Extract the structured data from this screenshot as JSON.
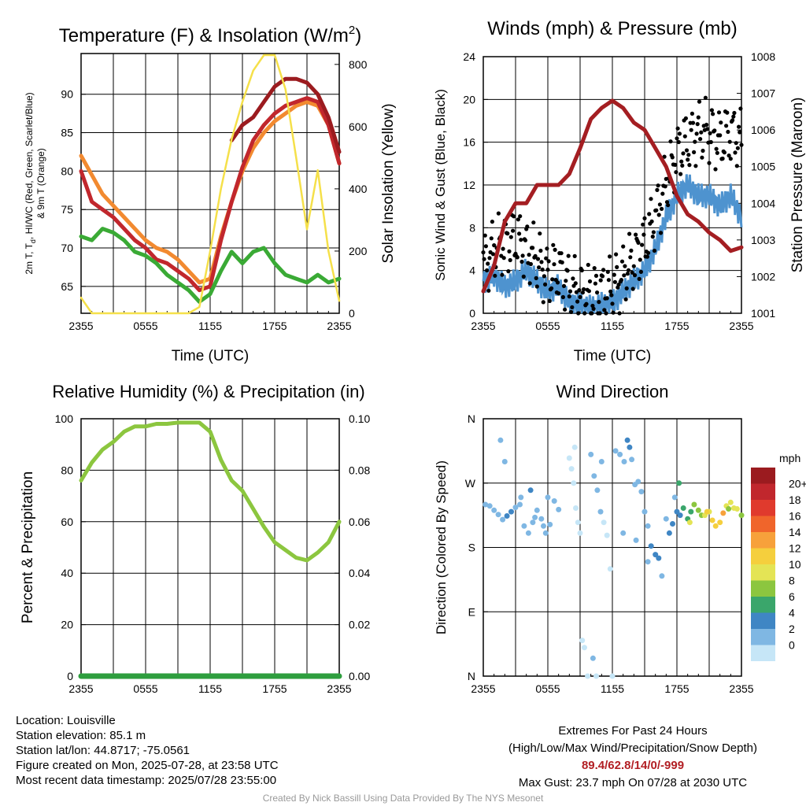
{
  "colors": {
    "red": "#c1272d",
    "dark_red": "#9b1b1f",
    "orange": "#f28a30",
    "green": "#3aaa35",
    "yellow": "#f5e04a",
    "blue": "#4e93cf",
    "black": "#000000",
    "maroon": "#a41e22",
    "rh": "#8cc63f",
    "precip": "#2e9e3e"
  },
  "chart_data": [
    {
      "id": "temp",
      "type": "line",
      "title": "Temperature (F) & Insolation (W/m",
      "title_sup": "2",
      "title_end": ")",
      "xlabel": "Time (UTC)",
      "ylabel_line1": "2m T, T",
      "ylabel_sub": "d",
      "ylabel_line1_end": ", HI/WC (Red, Green, Scarlet/Blue)",
      "ylabel_line2": "& 9m T (Orange)",
      "ylabel_right": "Solar Insolation (Yellow)",
      "x_ticks": [
        "2355",
        "0555",
        "1155",
        "1755",
        "2355"
      ],
      "ylim": [
        61.5,
        95.3
      ],
      "y_ticks": [
        "65",
        "70",
        "75",
        "80",
        "85",
        "90"
      ],
      "ylim_right": [
        0,
        835
      ],
      "y_ticks_right": [
        "0",
        "200",
        "400",
        "600",
        "800"
      ],
      "series": [
        {
          "color": "orange",
          "x": [
            0,
            1,
            2,
            3,
            4,
            5,
            6,
            7,
            8,
            9,
            10,
            11,
            12,
            13,
            14,
            15,
            16,
            17,
            18,
            19,
            20,
            21,
            22,
            23,
            24
          ],
          "values": [
            82,
            79.5,
            77,
            75.5,
            74,
            72.5,
            71,
            70,
            69.5,
            68.5,
            67,
            65.5,
            66,
            71.5,
            76,
            80,
            83,
            85,
            86.5,
            87.5,
            88.5,
            89,
            88.5,
            86,
            81
          ]
        },
        {
          "color": "red",
          "x": [
            0,
            1,
            2,
            3,
            4,
            5,
            6,
            7,
            8,
            9,
            10,
            11,
            12,
            13,
            14,
            15,
            16,
            17,
            18,
            19,
            20,
            21,
            22,
            23,
            24
          ],
          "values": [
            80,
            76,
            75,
            74,
            72.5,
            71,
            70,
            68.5,
            68,
            67,
            66,
            64.5,
            65,
            71,
            76,
            80.5,
            84,
            86,
            87.5,
            88.5,
            89,
            89.5,
            89,
            86,
            81
          ]
        },
        {
          "color": "dark_red",
          "x": [
            0,
            1,
            2,
            3,
            4,
            5,
            6,
            7,
            8,
            9,
            10,
            11,
            12,
            13,
            14,
            15,
            16,
            17,
            18,
            19,
            20,
            21,
            22,
            23,
            24
          ],
          "values": [
            null,
            null,
            null,
            null,
            null,
            null,
            null,
            null,
            null,
            null,
            null,
            null,
            null,
            null,
            84,
            86,
            87,
            89,
            91,
            92,
            92,
            91.5,
            90,
            87,
            82.5
          ]
        },
        {
          "color": "green",
          "x": [
            0,
            1,
            2,
            3,
            4,
            5,
            6,
            7,
            8,
            9,
            10,
            11,
            12,
            13,
            14,
            15,
            16,
            17,
            18,
            19,
            20,
            21,
            22,
            23,
            24
          ],
          "values": [
            71.5,
            71,
            72.5,
            72,
            71,
            69.5,
            69,
            68,
            66.5,
            65.5,
            64.5,
            63,
            64,
            67,
            69.5,
            68,
            69.5,
            70,
            68,
            66.5,
            66,
            65.5,
            66.5,
            65.5,
            66
          ]
        },
        {
          "color": "yellow",
          "axis": "right",
          "x": [
            0,
            1,
            2,
            3,
            4,
            5,
            6,
            7,
            8,
            9,
            10,
            11,
            12,
            13,
            14,
            15,
            16,
            17,
            18,
            19,
            20,
            21,
            22,
            23,
            24
          ],
          "values": [
            50,
            0,
            0,
            0,
            0,
            0,
            0,
            0,
            0,
            0,
            0,
            20,
            200,
            400,
            560,
            680,
            780,
            830,
            830,
            720,
            500,
            270,
            460,
            200,
            40
          ]
        }
      ]
    },
    {
      "id": "wind",
      "type": "line",
      "title": "Winds (mph) & Pressure (mb)",
      "xlabel": "Time (UTC)",
      "ylabel": "Sonic Wind & Gust (Blue, Black)",
      "ylabel_right": "Station Pressure (Maroon)",
      "x_ticks": [
        "2355",
        "0555",
        "1155",
        "1755",
        "2355"
      ],
      "ylim": [
        0,
        24
      ],
      "y_ticks": [
        "0",
        "4",
        "8",
        "12",
        "16",
        "20",
        "24"
      ],
      "ylim_right": [
        1001,
        1008
      ],
      "y_ticks_right": [
        "1001",
        "1002",
        "1003",
        "1004",
        "1005",
        "1006",
        "1007",
        "1008"
      ],
      "series": [
        {
          "color": "blue",
          "name": "Sonic Wind",
          "x": [
            0,
            1,
            2,
            3,
            4,
            5,
            6,
            7,
            8,
            9,
            10,
            11,
            12,
            13,
            14,
            15,
            16,
            17,
            18,
            19,
            20,
            21,
            22,
            23,
            24
          ],
          "values": [
            3,
            3.5,
            2.5,
            3,
            4,
            3,
            2,
            2.5,
            1,
            0.8,
            0.5,
            0.8,
            1,
            2,
            3,
            4,
            6,
            9,
            11,
            12,
            11,
            11,
            10,
            11,
            9
          ]
        },
        {
          "color": "black",
          "name": "Gust",
          "x": [
            0,
            1,
            2,
            3,
            4,
            5,
            6,
            7,
            8,
            9,
            10,
            11,
            12,
            13,
            14,
            15,
            16,
            17,
            18,
            19,
            20,
            21,
            22,
            23,
            24
          ],
          "values": [
            4.5,
            6,
            6.5,
            7,
            6,
            5,
            3.5,
            4,
            2.5,
            2,
            1.5,
            2,
            2.5,
            3.5,
            5,
            6.5,
            9,
            12,
            15,
            16,
            17,
            17,
            16,
            17,
            16
          ]
        },
        {
          "color": "maroon",
          "name": "Station Pressure",
          "axis": "right",
          "x": [
            0,
            1,
            2,
            3,
            4,
            5,
            6,
            7,
            8,
            9,
            10,
            11,
            12,
            13,
            14,
            15,
            16,
            17,
            18,
            19,
            20,
            21,
            22,
            23,
            24
          ],
          "values": [
            1001.6,
            1002.3,
            1003.5,
            1004,
            1004,
            1004.5,
            1004.5,
            1004.5,
            1004.8,
            1005.5,
            1006.3,
            1006.6,
            1006.8,
            1006.6,
            1006.2,
            1006,
            1005.5,
            1005,
            1004.2,
            1003.7,
            1003.5,
            1003.2,
            1003,
            1002.7,
            1002.8
          ]
        }
      ]
    },
    {
      "id": "rh",
      "type": "line",
      "title": "Relative Humidity (%) & Precipitation (in)",
      "ylabel": "Percent & Precipitation",
      "x_ticks": [
        "2355",
        "0555",
        "1155",
        "1755",
        "2355"
      ],
      "ylim": [
        0,
        100
      ],
      "y_ticks": [
        "0",
        "20",
        "40",
        "60",
        "80",
        "100"
      ],
      "ylim_right": [
        0,
        0.1
      ],
      "y_ticks_right": [
        "0.00",
        "0.02",
        "0.04",
        "0.06",
        "0.08",
        "0.10"
      ],
      "series": [
        {
          "color": "rh",
          "x": [
            0,
            1,
            2,
            3,
            4,
            5,
            6,
            7,
            8,
            9,
            10,
            11,
            12,
            13,
            14,
            15,
            16,
            17,
            18,
            19,
            20,
            21,
            22,
            23,
            24
          ],
          "values": [
            76,
            83,
            88,
            91,
            95,
            97,
            97,
            98,
            98,
            98.5,
            98.5,
            98.5,
            95,
            84,
            76,
            72,
            65,
            58,
            52,
            49,
            46,
            45,
            48,
            52,
            60
          ]
        },
        {
          "color": "precip",
          "axis": "right",
          "x": [
            0,
            24
          ],
          "values": [
            0,
            0
          ]
        }
      ]
    },
    {
      "id": "dir",
      "type": "scatter",
      "title": "Wind Direction",
      "ylabel": "Direction (Colored By Speed)",
      "x_ticks": [
        "2355",
        "0555",
        "1155",
        "1755",
        "2355"
      ],
      "ylim": [
        0,
        360
      ],
      "y_ticks": [
        "N",
        "E",
        "S",
        "W",
        "N"
      ],
      "colorbar_title": "mph",
      "colorbar_labels": [
        "20+",
        "18",
        "16",
        "14",
        "12",
        "10",
        "8",
        "6",
        "4",
        "2",
        "0"
      ],
      "colorbar_colors": [
        "#9b1b1f",
        "#c1272d",
        "#e03a2d",
        "#f0652b",
        "#f7a13b",
        "#f5cf3d",
        "#e4e455",
        "#8cc63f",
        "#3aa66b",
        "#3f86c4",
        "#7fb7e3",
        "#c6e6f7"
      ],
      "points": [
        [
          0.2,
          240,
          2
        ],
        [
          0.6,
          238,
          3
        ],
        [
          1.0,
          232,
          3
        ],
        [
          1.4,
          226,
          3
        ],
        [
          1.8,
          219,
          3
        ],
        [
          2.2,
          224,
          4
        ],
        [
          2.6,
          230,
          4
        ],
        [
          3.0,
          236,
          3
        ],
        [
          3.4,
          240,
          3
        ],
        [
          3.8,
          210,
          3
        ],
        [
          4.2,
          200,
          3
        ],
        [
          4.6,
          215,
          2
        ],
        [
          5.0,
          232,
          3
        ],
        [
          5.4,
          220,
          2
        ],
        [
          5.8,
          200,
          3
        ],
        [
          6.2,
          212,
          3
        ],
        [
          6.6,
          245,
          3
        ],
        [
          7.0,
          233,
          3
        ],
        [
          1.6,
          330,
          2
        ],
        [
          2.0,
          300,
          2
        ],
        [
          3.5,
          250,
          3
        ],
        [
          4.4,
          260,
          4
        ],
        [
          4.8,
          222,
          3
        ],
        [
          5.6,
          210,
          2
        ],
        [
          6.0,
          250,
          2
        ],
        [
          8.0,
          305,
          1
        ],
        [
          8.2,
          290,
          1
        ],
        [
          8.4,
          270,
          1
        ],
        [
          8.6,
          235,
          1
        ],
        [
          8.8,
          215,
          1
        ],
        [
          9.0,
          200,
          1
        ],
        [
          8.5,
          320,
          1
        ],
        [
          9.2,
          50,
          1
        ],
        [
          9.4,
          40,
          1
        ],
        [
          9.7,
          0,
          1
        ],
        [
          10.0,
          310,
          2
        ],
        [
          10.3,
          280,
          2
        ],
        [
          10.6,
          260,
          2
        ],
        [
          10.9,
          230,
          2
        ],
        [
          11.2,
          215,
          1
        ],
        [
          11.5,
          197,
          1
        ],
        [
          11.8,
          150,
          1
        ],
        [
          12.0,
          0,
          1
        ],
        [
          10.2,
          25,
          2
        ],
        [
          10.5,
          0,
          1
        ],
        [
          11.0,
          300,
          2
        ],
        [
          12.3,
          315,
          3
        ],
        [
          12.7,
          310,
          3
        ],
        [
          13.1,
          300,
          3
        ],
        [
          13.4,
          330,
          4
        ],
        [
          13.6,
          320,
          4
        ],
        [
          13.8,
          303,
          3
        ],
        [
          14.1,
          268,
          3
        ],
        [
          14.4,
          272,
          2
        ],
        [
          14.7,
          258,
          3
        ],
        [
          15.0,
          230,
          3
        ],
        [
          15.3,
          210,
          3
        ],
        [
          15.6,
          182,
          4
        ],
        [
          16.0,
          170,
          4
        ],
        [
          16.3,
          165,
          4
        ],
        [
          16.6,
          140,
          3
        ],
        [
          17.0,
          220,
          3
        ],
        [
          17.3,
          200,
          4
        ],
        [
          17.6,
          213,
          4
        ],
        [
          18.0,
          230,
          5
        ],
        [
          18.3,
          225,
          5
        ],
        [
          18.6,
          235,
          6
        ],
        [
          19.0,
          220,
          6
        ],
        [
          19.3,
          230,
          7
        ],
        [
          19.6,
          240,
          8
        ],
        [
          20.0,
          232,
          8
        ],
        [
          20.3,
          225,
          9
        ],
        [
          20.6,
          225,
          11
        ],
        [
          21.0,
          230,
          11
        ],
        [
          21.3,
          218,
          12
        ],
        [
          21.6,
          210,
          13
        ],
        [
          22.0,
          215,
          12
        ],
        [
          22.3,
          228,
          14
        ],
        [
          22.6,
          238,
          11
        ],
        [
          23.0,
          243,
          11
        ],
        [
          23.3,
          235,
          10
        ],
        [
          23.6,
          234,
          10
        ],
        [
          24.0,
          225,
          9
        ],
        [
          17.8,
          250,
          3
        ],
        [
          18.2,
          270,
          6
        ],
        [
          19.2,
          215,
          10
        ],
        [
          20.8,
          230,
          12
        ],
        [
          22.8,
          234,
          9
        ],
        [
          15.3,
          160,
          3
        ],
        [
          14.2,
          190,
          3
        ],
        [
          13.0,
          200,
          2
        ]
      ]
    }
  ],
  "footer": {
    "location": "Location: Louisville",
    "elevation": "Station elevation: 85.1 m",
    "latlon": "Station lat/lon: 44.8717; -75.0561",
    "created": "Figure created on Mon, 2025-07-28, at 23:58 UTC",
    "recent": "Most recent data timestamp: 2025/07/28 23:55:00",
    "extremes_title": "Extremes For Past 24 Hours",
    "extremes_sub": "(High/Low/Max Wind/Precipitation/Snow Depth)",
    "extremes_values": "89.4/62.8/14/0/-999",
    "max_gust": "Max Gust: 23.7 mph On 07/28 at 2030 UTC",
    "credit": "Created By Nick Bassill Using Data Provided By The NYS Mesonet"
  }
}
